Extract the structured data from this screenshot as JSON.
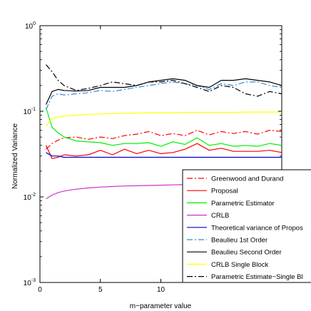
{
  "chart_data": {
    "type": "line",
    "title": "",
    "xlabel": "m−parameter value",
    "ylabel": "Normalized Variance",
    "yscale": "log",
    "xlim": [
      0,
      20
    ],
    "ylim": [
      0.001,
      1
    ],
    "x_ticks": [
      {
        "value": 0,
        "label": "0"
      },
      {
        "value": 5,
        "label": "5"
      },
      {
        "value": 10,
        "label": "10"
      }
    ],
    "y_ticks": [
      {
        "value": 0.001,
        "base": "10",
        "exp": "-3"
      },
      {
        "value": 0.01,
        "base": "10",
        "exp": "-2"
      },
      {
        "value": 0.1,
        "base": "10",
        "exp": "-1"
      },
      {
        "value": 1,
        "base": "10",
        "exp": "0"
      }
    ],
    "grid": false,
    "legend_placement": "bottom-right",
    "x": [
      0.5,
      1,
      1.5,
      2,
      3,
      4,
      5,
      6,
      7,
      8,
      9,
      10,
      11,
      12,
      13,
      14,
      15,
      16,
      17,
      18,
      19,
      20
    ],
    "series": [
      {
        "name": "Greenwood and Durand",
        "color": "#ff0000",
        "dash": "8,3,2,3",
        "values": [
          0.036,
          0.042,
          0.046,
          0.049,
          0.05,
          0.047,
          0.05,
          0.048,
          0.052,
          0.054,
          0.058,
          0.052,
          0.055,
          0.052,
          0.06,
          0.053,
          0.058,
          0.055,
          0.058,
          0.054,
          0.06,
          0.058
        ]
      },
      {
        "name": "Proposal",
        "color": "#ff0000",
        "dash": "",
        "values": [
          0.04,
          0.028,
          0.029,
          0.031,
          0.03,
          0.031,
          0.035,
          0.031,
          0.036,
          0.032,
          0.035,
          0.032,
          0.033,
          0.036,
          0.042,
          0.035,
          0.037,
          0.034,
          0.034,
          0.034,
          0.035,
          0.033
        ]
      },
      {
        "name": "Parametric Estimator",
        "color": "#00ee00",
        "dash": "",
        "values": [
          0.11,
          0.065,
          0.056,
          0.05,
          0.045,
          0.044,
          0.043,
          0.04,
          0.042,
          0.042,
          0.043,
          0.039,
          0.044,
          0.041,
          0.049,
          0.04,
          0.042,
          0.039,
          0.04,
          0.039,
          0.042,
          0.04
        ]
      },
      {
        "name": "CRLB",
        "color": "#cc33cc",
        "dash": "",
        "values": [
          0.0095,
          0.0105,
          0.0112,
          0.0117,
          0.0123,
          0.0127,
          0.013,
          0.0132,
          0.0134,
          0.0135,
          0.0136,
          0.0137,
          0.0138,
          0.0139,
          0.014,
          0.0141,
          0.0142,
          0.0142,
          0.0143,
          0.0143,
          0.0144,
          0.0144
        ]
      },
      {
        "name": "Theoretical variance of Propos",
        "color": "#0000cc",
        "dash": "",
        "values": [
          0.033,
          0.03,
          0.03,
          0.029,
          0.029,
          0.029,
          0.029,
          0.029,
          0.029,
          0.029,
          0.029,
          0.029,
          0.029,
          0.029,
          0.029,
          0.029,
          0.029,
          0.029,
          0.029,
          0.029,
          0.029,
          0.029
        ]
      },
      {
        "name": "Beaulieu 1st Order",
        "color": "#3388dd",
        "dash": "8,3,2,3",
        "values": [
          0.105,
          0.15,
          0.16,
          0.155,
          0.16,
          0.165,
          0.175,
          0.17,
          0.18,
          0.19,
          0.2,
          0.21,
          0.22,
          0.21,
          0.2,
          0.18,
          0.21,
          0.2,
          0.22,
          0.22,
          0.2,
          0.19
        ]
      },
      {
        "name": "Beaulieu Second Order",
        "color": "#000000",
        "dash": "",
        "values": [
          0.12,
          0.17,
          0.18,
          0.175,
          0.172,
          0.175,
          0.19,
          0.19,
          0.19,
          0.2,
          0.22,
          0.23,
          0.24,
          0.23,
          0.2,
          0.19,
          0.23,
          0.23,
          0.24,
          0.23,
          0.22,
          0.2
        ]
      },
      {
        "name": "CRLB Single Block",
        "color": "#ffff00",
        "dash": "",
        "values": [
          0.068,
          0.082,
          0.086,
          0.088,
          0.09,
          0.092,
          0.093,
          0.094,
          0.095,
          0.095,
          0.096,
          0.096,
          0.096,
          0.097,
          0.097,
          0.097,
          0.097,
          0.097,
          0.098,
          0.098,
          0.098,
          0.098
        ]
      },
      {
        "name": "Parametric Estimate−Single Bl",
        "color": "#000000",
        "dash": "8,3,2,3",
        "values": [
          0.35,
          0.29,
          0.23,
          0.2,
          0.175,
          0.185,
          0.2,
          0.22,
          0.21,
          0.2,
          0.22,
          0.22,
          0.23,
          0.21,
          0.19,
          0.17,
          0.2,
          0.19,
          0.16,
          0.15,
          0.17,
          0.16
        ]
      }
    ]
  }
}
